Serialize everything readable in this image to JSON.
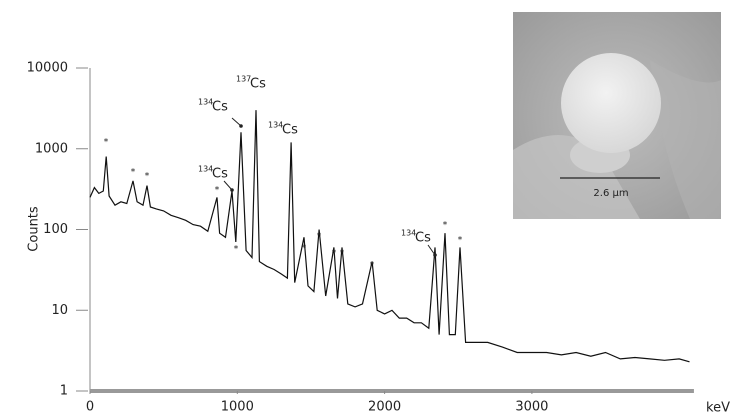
{
  "chart_data": {
    "type": "line",
    "y_label": "Counts",
    "x_label": "keV",
    "log_y": true,
    "grid": false,
    "x": [
      0,
      30,
      60,
      90,
      110,
      130,
      170,
      210,
      250,
      292,
      320,
      360,
      387,
      410,
      450,
      500,
      550,
      600,
      650,
      700,
      750,
      800,
      862,
      880,
      920,
      964,
      990,
      1025,
      1060,
      1100,
      1127,
      1150,
      1200,
      1250,
      1300,
      1340,
      1365,
      1390,
      1453,
      1480,
      1520,
      1555,
      1600,
      1656,
      1680,
      1711,
      1750,
      1800,
      1850,
      1915,
      1950,
      2000,
      2050,
      2100,
      2150,
      2200,
      2250,
      2300,
      2342,
      2370,
      2410,
      2440,
      2480,
      2512,
      2550,
      2600,
      2700,
      2800,
      2900,
      3000,
      3100,
      3200,
      3300,
      3400,
      3500,
      3600,
      3700,
      3800,
      3900,
      4000,
      4070
    ],
    "series": [
      {
        "name": "Counts",
        "color": "#111111",
        "values": [
          250,
          330,
          280,
          300,
          800,
          260,
          200,
          220,
          210,
          400,
          220,
          200,
          350,
          190,
          180,
          170,
          150,
          140,
          130,
          115,
          110,
          95,
          250,
          90,
          80,
          300,
          70,
          1600,
          55,
          45,
          3000,
          40,
          35,
          32,
          28,
          25,
          1200,
          22,
          80,
          20,
          17,
          100,
          15,
          60,
          14,
          60,
          12,
          11,
          12,
          40,
          10,
          9,
          10,
          8,
          8,
          7,
          7,
          6,
          60,
          5,
          90,
          5,
          5,
          60,
          4,
          4,
          4,
          3.5,
          3,
          3,
          3,
          2.8,
          3,
          2.7,
          3,
          2.5,
          2.6,
          2.5,
          2.4,
          2.5,
          2.3
        ]
      }
    ],
    "xlim": [
      0,
      4100
    ],
    "xticks": [
      0,
      1000,
      2000,
      3000
    ],
    "ylim": [
      1,
      10000
    ],
    "yticks": [
      1,
      10,
      100,
      1000,
      10000
    ],
    "peak_mark": "*",
    "annotations": [
      {
        "mass": "137",
        "element": "Cs"
      },
      {
        "mass": "134",
        "element": "Cs"
      },
      {
        "mass": "134",
        "element": "Cs"
      },
      {
        "mass": "134",
        "element": "Cs"
      },
      {
        "mass": "134",
        "element": "Cs"
      }
    ],
    "inset_scale_label": "2.6 µm"
  }
}
